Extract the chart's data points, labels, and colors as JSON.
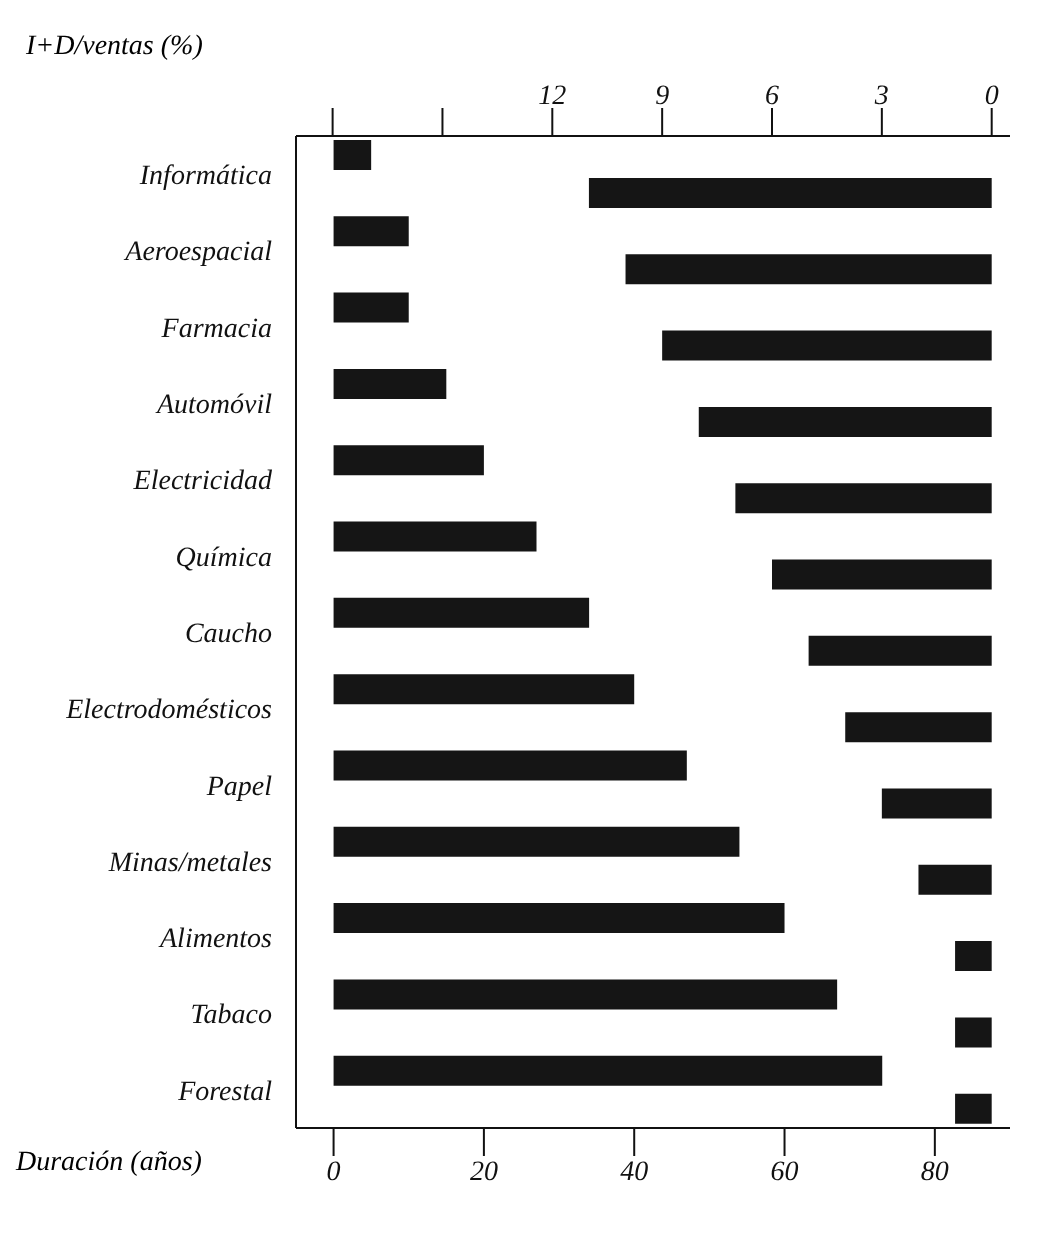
{
  "chart_data": {
    "type": "bar",
    "orientation": "horizontal",
    "categories": [
      "Informática",
      "Aeroespacial",
      "Farmacia",
      "Automóvil",
      "Electricidad",
      "Química",
      "Caucho",
      "Electrodomésticos",
      "Papel",
      "Minas/metales",
      "Alimentos",
      "Tabaco",
      "Forestal"
    ],
    "series": [
      {
        "color": "#151515",
        "values": [
          5,
          10,
          10,
          15,
          20,
          27,
          34,
          40,
          47,
          54,
          60,
          67,
          73
        ]
      },
      {
        "color": "#151515",
        "axis": "x2",
        "values": [
          11,
          10,
          9,
          8,
          7,
          6,
          5,
          4,
          3,
          2,
          1,
          1,
          1
        ]
      }
    ],
    "xlabel": "Duración (años)",
    "x2label": "I+D/ventas (%)",
    "xlim": [
      -5,
      90
    ],
    "xticks": [
      0,
      20,
      40,
      60,
      80
    ],
    "x2lim": [
      19,
      -0.5
    ],
    "x2ticks": [
      {
        "value": 18,
        "label": null
      },
      {
        "value": 15,
        "label": null
      },
      12,
      9,
      6,
      3,
      0
    ],
    "grid": false
  }
}
